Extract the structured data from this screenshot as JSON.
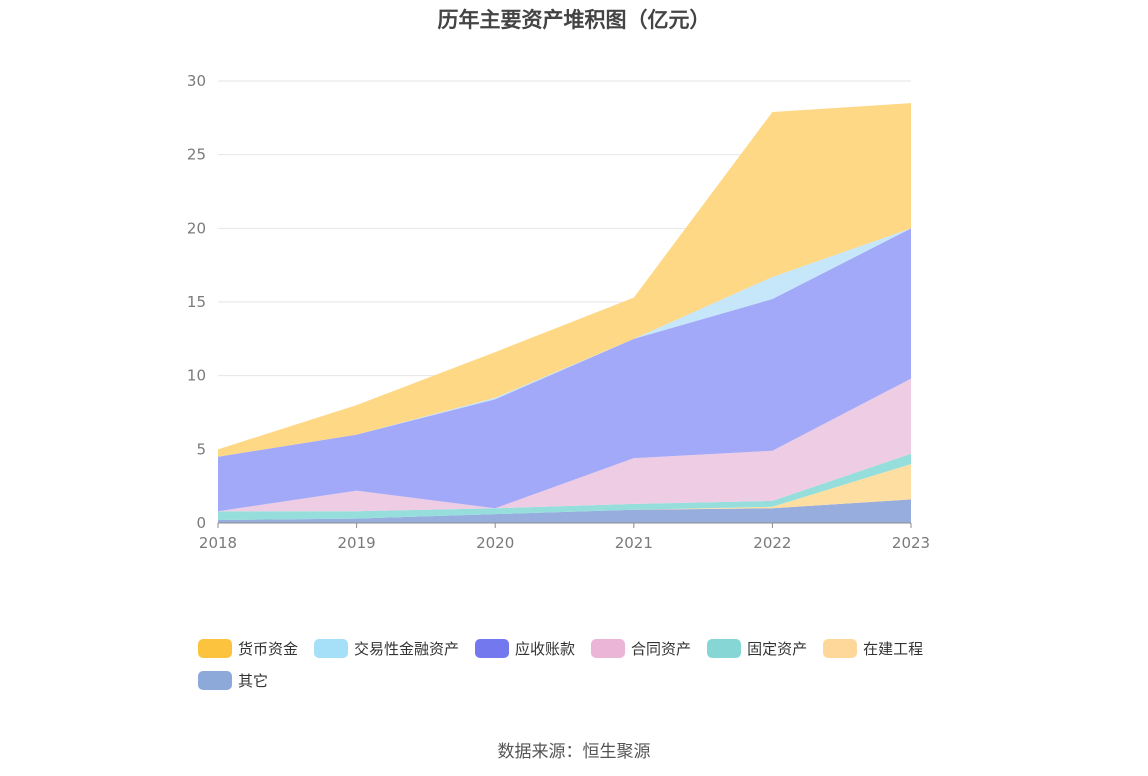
{
  "chart_data": {
    "type": "area",
    "stacked": true,
    "title": "历年主要资产堆积图（亿元）",
    "x": [
      "2018",
      "2019",
      "2020",
      "2021",
      "2022",
      "2023"
    ],
    "ylim": [
      0,
      30
    ],
    "yticks": [
      "0",
      "5",
      "10",
      "15",
      "20",
      "25",
      "30"
    ],
    "grid": true,
    "legend_position": "bottom",
    "series": [
      {
        "name": "其它",
        "color": "#91a9dc",
        "values": [
          0.2,
          0.3,
          0.6,
          0.9,
          1.0,
          1.6
        ]
      },
      {
        "name": "在建工程",
        "color": "#fedc9c",
        "values": [
          0.0,
          0.0,
          0.0,
          0.0,
          0.1,
          2.4
        ]
      },
      {
        "name": "固定资产",
        "color": "#8fdcda",
        "values": [
          0.6,
          0.5,
          0.4,
          0.4,
          0.4,
          0.7
        ]
      },
      {
        "name": "合同资产",
        "color": "#ecc9e3",
        "values": [
          0.0,
          1.4,
          0.0,
          3.1,
          3.4,
          5.1
        ]
      },
      {
        "name": "应收账款",
        "color": "#9da4f8",
        "values": [
          3.7,
          3.8,
          7.4,
          8.1,
          10.3,
          10.2
        ]
      },
      {
        "name": "交易性金融资产",
        "color": "#c3e5f9",
        "values": [
          0.0,
          0.0,
          0.1,
          0.0,
          1.5,
          0.0
        ]
      },
      {
        "name": "货币资金",
        "color": "#fed67d",
        "values": [
          0.5,
          2.0,
          3.1,
          2.8,
          11.2,
          8.5
        ]
      }
    ]
  },
  "legend": [
    {
      "name": "货币资金",
      "color": "#fcc33f"
    },
    {
      "name": "交易性金融资产",
      "color": "#a5dff8"
    },
    {
      "name": "应收账款",
      "color": "#7478ee"
    },
    {
      "name": "合同资产",
      "color": "#ebb5d8"
    },
    {
      "name": "固定资产",
      "color": "#86d6d6"
    },
    {
      "name": "在建工程",
      "color": "#fed89a"
    },
    {
      "name": "其它",
      "color": "#8da9da"
    }
  ],
  "source": "数据来源：恒生聚源"
}
